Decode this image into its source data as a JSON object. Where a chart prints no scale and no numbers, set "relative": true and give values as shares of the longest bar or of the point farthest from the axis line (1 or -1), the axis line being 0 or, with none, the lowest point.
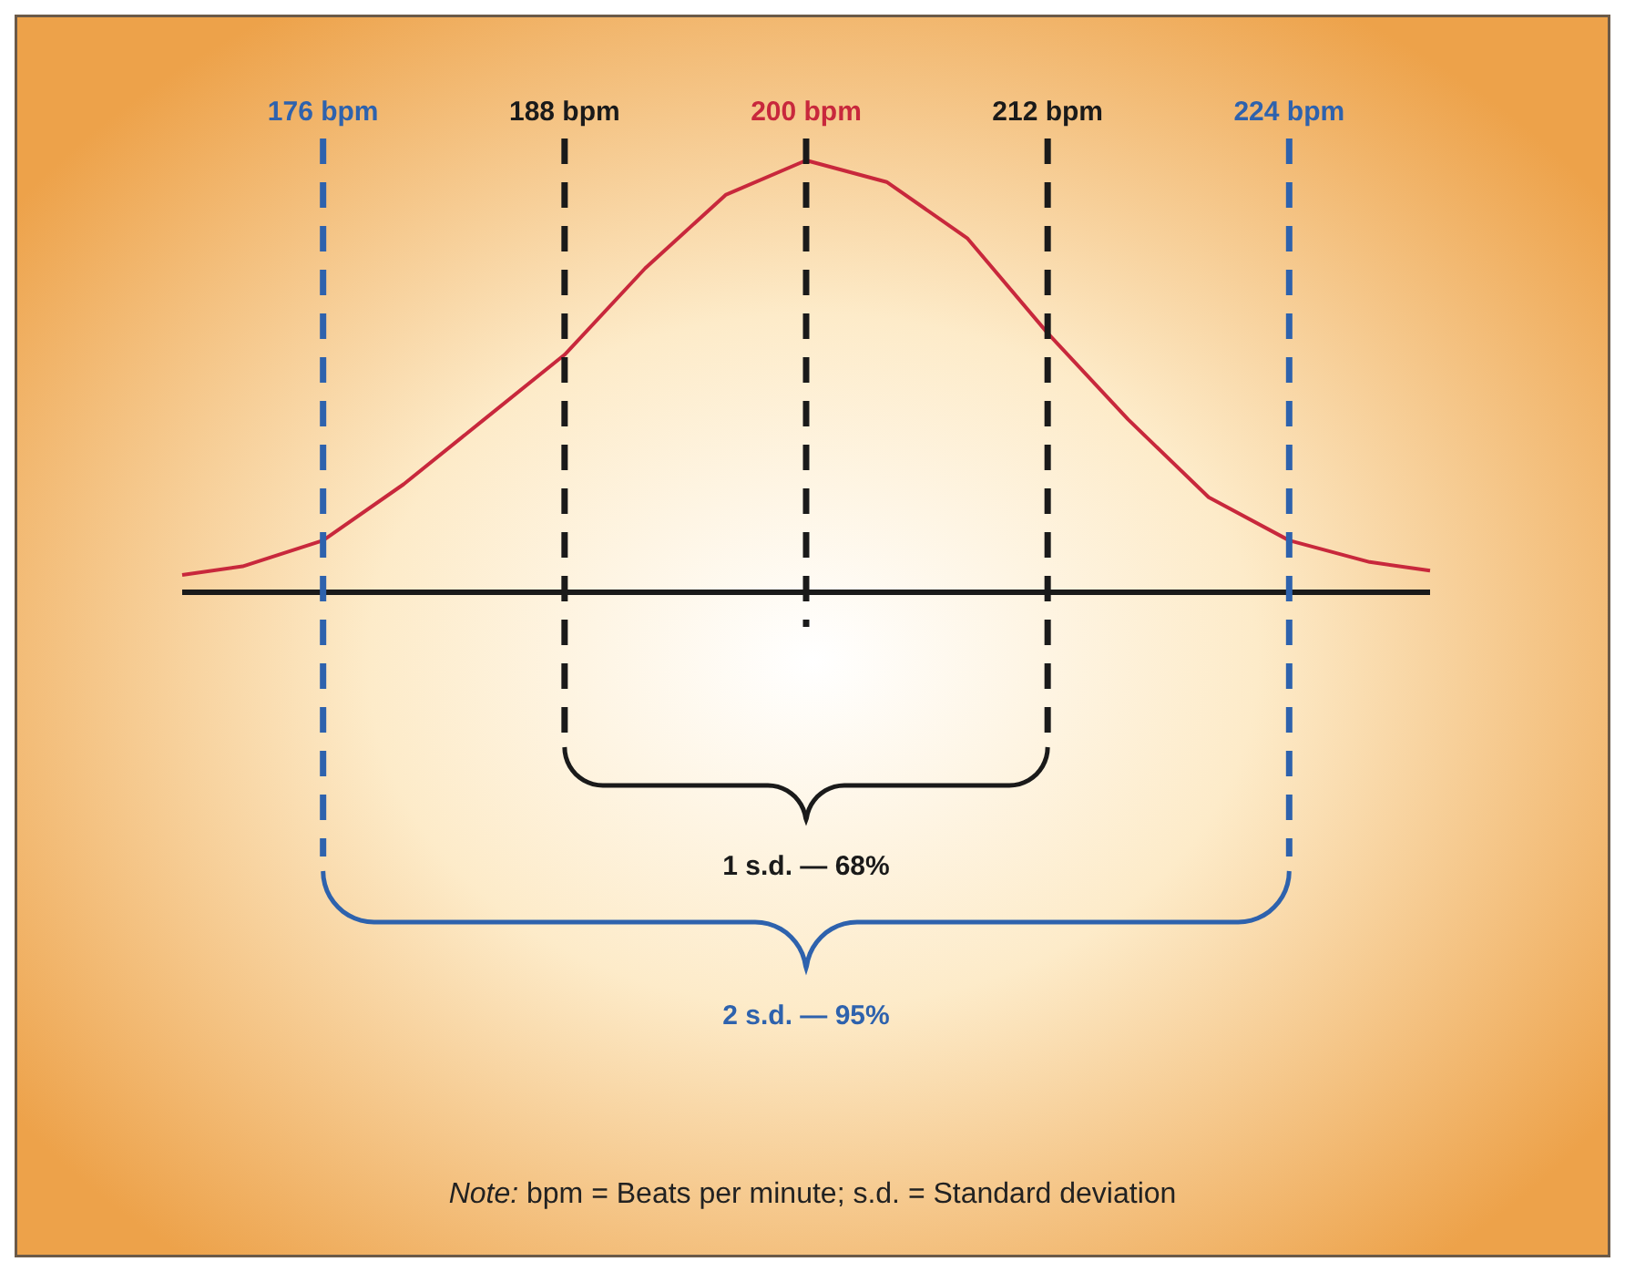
{
  "chart_data": {
    "type": "line",
    "relative": true,
    "xlim": [
      169,
      231
    ],
    "tick_labels": "x",
    "grid": false,
    "legend": false,
    "xticks": [
      {
        "value": 176,
        "label": "176 bpm"
      },
      {
        "value": 188,
        "label": "188 bpm"
      },
      {
        "value": 200,
        "label": "200 bpm"
      },
      {
        "value": 212,
        "label": "212 bpm"
      },
      {
        "value": 224,
        "label": "224 bpm"
      }
    ],
    "marker": "none",
    "line_style": "solid",
    "x": [
      169,
      172,
      176,
      180,
      184,
      188,
      192,
      196,
      200,
      204,
      208,
      212,
      216,
      220,
      224,
      228,
      231
    ],
    "series": [
      {
        "color": "#c8283c",
        "values": [
          0.04,
          0.06,
          0.12,
          0.25,
          0.4,
          0.55,
          0.75,
          0.92,
          1,
          0.95,
          0.82,
          0.6,
          0.4,
          0.22,
          0.12,
          0.07,
          0.05
        ]
      }
    ],
    "ref_lines": [
      {
        "axis": "x",
        "value": 176,
        "color": "#2e62ad",
        "line_style": "dashed"
      },
      {
        "axis": "x",
        "value": 188,
        "color": "#1a1a1a",
        "line_style": "dashed"
      },
      {
        "axis": "x",
        "value": 200,
        "color": "#1a1a1a",
        "line_style": "dashed"
      },
      {
        "axis": "x",
        "value": 212,
        "color": "#1a1a1a",
        "line_style": "dashed"
      },
      {
        "axis": "x",
        "value": 224,
        "color": "#2e62ad",
        "line_style": "dashed"
      }
    ],
    "annotations": [
      "1 s.d. — 68%",
      "2 s.d. — 95%",
      "Note: bpm = Beats per minute; s.d. = Standard deviation"
    ]
  }
}
